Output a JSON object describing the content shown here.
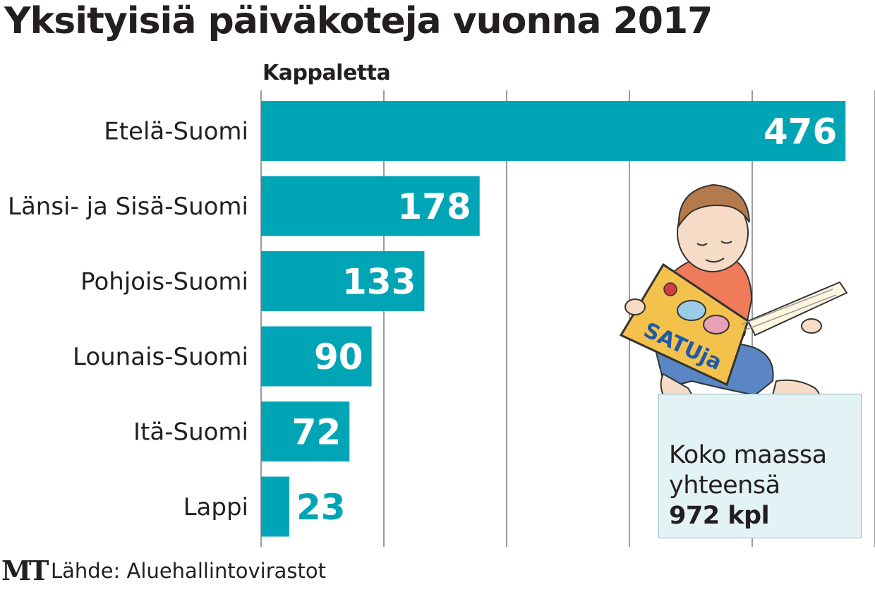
{
  "chart_data": {
    "type": "bar",
    "orientation": "horizontal",
    "title": "Yksityisiä päiväkoteja vuonna 2017",
    "ylabel": "Kappaletta",
    "categories": [
      "Etelä-Suomi",
      "Länsi- ja Sisä-Suomi",
      "Pohjois-Suomi",
      "Lounais-Suomi",
      "Itä-Suomi",
      "Lappi"
    ],
    "values": [
      476,
      178,
      133,
      90,
      72,
      23
    ],
    "value_labels": [
      "476",
      "178",
      "133",
      "90",
      "72",
      "23"
    ],
    "xlim": [
      0,
      500
    ],
    "grid": true,
    "bar_color": "#00a5b5"
  },
  "total_box": {
    "line1": "Koko maassa",
    "line2": "yhteensä",
    "value": "972 kpl"
  },
  "footer": {
    "logo": "MT",
    "source": "Lähde: Aluehallintovirastot"
  },
  "illustration": {
    "name": "child-reading-book",
    "book_text": "SATUja"
  }
}
